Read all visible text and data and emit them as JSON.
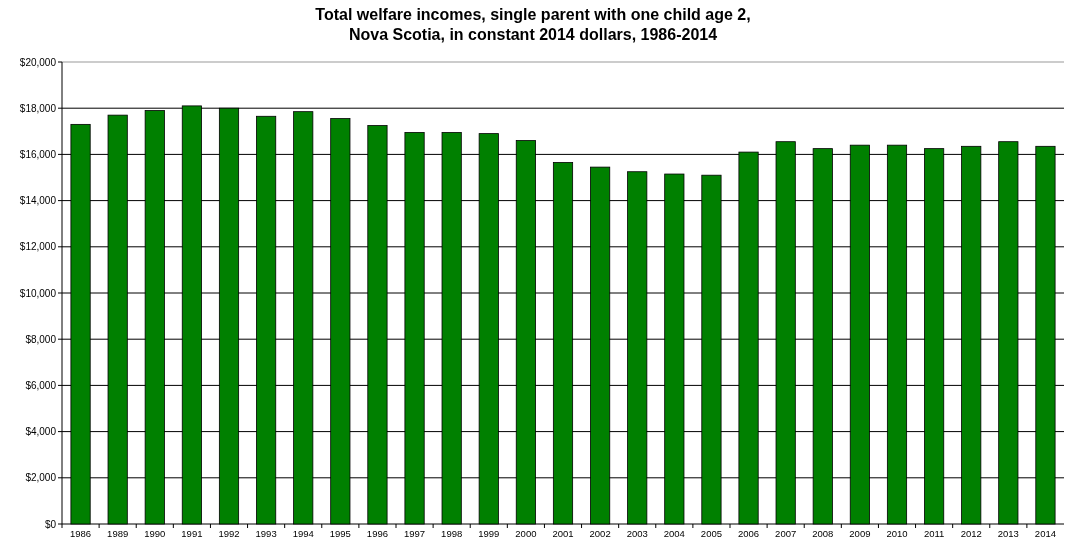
{
  "chart_data": {
    "type": "bar",
    "title": "Total welfare incomes, single parent with one child age 2,\nNova Scotia, in constant 2014 dollars, 1986-2014",
    "categories": [
      "1986",
      "1989",
      "1990",
      "1991",
      "1992",
      "1993",
      "1994",
      "1995",
      "1996",
      "1997",
      "1998",
      "1999",
      "2000",
      "2001",
      "2002",
      "2003",
      "2004",
      "2005",
      "2006",
      "2007",
      "2008",
      "2009",
      "2010",
      "2011",
      "2012",
      "2013",
      "2014"
    ],
    "values": [
      17300,
      17700,
      17900,
      18100,
      18000,
      17650,
      17850,
      17550,
      17250,
      16950,
      16950,
      16900,
      16600,
      15650,
      15450,
      15250,
      15150,
      15100,
      16100,
      16550,
      16250,
      16400,
      16400,
      16250,
      16350,
      16550,
      16350
    ],
    "color": "#008000",
    "ylim": [
      0,
      20000
    ],
    "yticks": [
      {
        "value": 0,
        "label": "$0"
      },
      {
        "value": 2000,
        "label": "$2,000"
      },
      {
        "value": 4000,
        "label": "$4,000"
      },
      {
        "value": 6000,
        "label": "$6,000"
      },
      {
        "value": 8000,
        "label": "$8,000"
      },
      {
        "value": 10000,
        "label": "$10,000"
      },
      {
        "value": 12000,
        "label": "$12,000"
      },
      {
        "value": 14000,
        "label": "$14,000"
      },
      {
        "value": 16000,
        "label": "$16,000"
      },
      {
        "value": 18000,
        "label": "$18,000"
      },
      {
        "value": 20000,
        "label": "$20,000"
      }
    ],
    "grid": "y"
  }
}
